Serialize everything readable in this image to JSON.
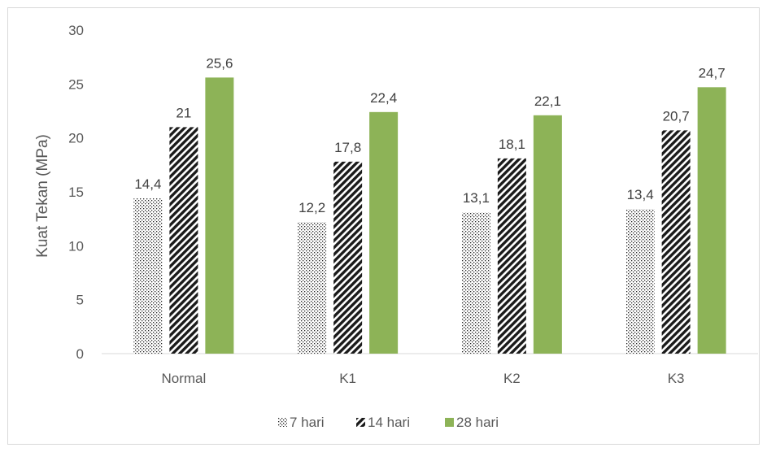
{
  "chart_data": {
    "type": "bar",
    "categories": [
      "Normal",
      "K1",
      "K2",
      "K3"
    ],
    "series": [
      {
        "name": "7 hari",
        "values": [
          14.4,
          12.2,
          13.1,
          13.4
        ],
        "labels": [
          "14,4",
          "12,2",
          "13,1",
          "13,4"
        ],
        "pattern": "dots"
      },
      {
        "name": "14 hari",
        "values": [
          21,
          17.8,
          18.1,
          20.7
        ],
        "labels": [
          "21",
          "17,8",
          "18,1",
          "20,7"
        ],
        "pattern": "diagonal-stripes"
      },
      {
        "name": "28 hari",
        "values": [
          25.6,
          22.4,
          22.1,
          24.7
        ],
        "labels": [
          "25,6",
          "22,4",
          "22,1",
          "24,7"
        ],
        "color": "#8db357"
      }
    ],
    "ylabel": "Kuat Tekan (MPa)",
    "xlabel": "",
    "ylim": [
      0,
      30
    ],
    "yticks": [
      "0",
      "5",
      "10",
      "15",
      "20",
      "25",
      "30"
    ],
    "grid": false,
    "legend": "bottom"
  }
}
